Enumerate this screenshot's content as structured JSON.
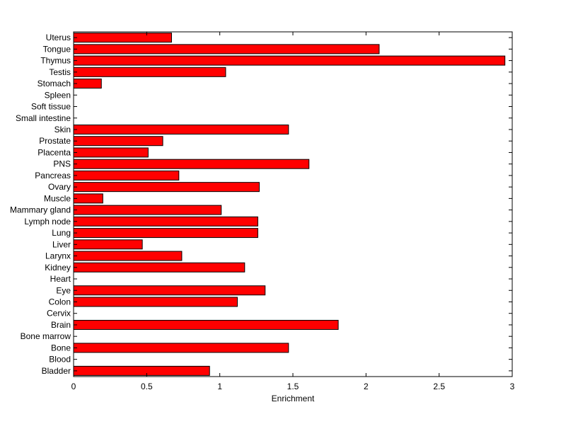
{
  "chart_data": {
    "type": "bar",
    "orientation": "horizontal",
    "title": "",
    "xlabel": "Enrichment",
    "ylabel": "",
    "xlim": [
      0,
      3
    ],
    "xticks": [
      "0",
      "0.5",
      "1",
      "1.5",
      "2",
      "2.5",
      "3"
    ],
    "grid": false,
    "bar_color": "#ff0000",
    "categories": [
      "Uterus",
      "Tongue",
      "Thymus",
      "Testis",
      "Stomach",
      "Spleen",
      "Soft tissue",
      "Small intestine",
      "Skin",
      "Prostate",
      "Placenta",
      "PNS",
      "Pancreas",
      "Ovary",
      "Muscle",
      "Mammary gland",
      "Lymph node",
      "Lung",
      "Liver",
      "Larynx",
      "Kidney",
      "Heart",
      "Eye",
      "Colon",
      "Cervix",
      "Brain",
      "Bone marrow",
      "Bone",
      "Blood",
      "Bladder"
    ],
    "values": [
      0.67,
      2.09,
      2.95,
      1.04,
      0.19,
      0,
      0,
      0,
      1.47,
      0.61,
      0.51,
      1.61,
      0.72,
      1.27,
      0.2,
      1.01,
      1.26,
      1.26,
      0.47,
      0.74,
      1.17,
      0,
      1.31,
      1.12,
      0,
      1.81,
      0,
      1.47,
      0,
      0.93
    ]
  }
}
